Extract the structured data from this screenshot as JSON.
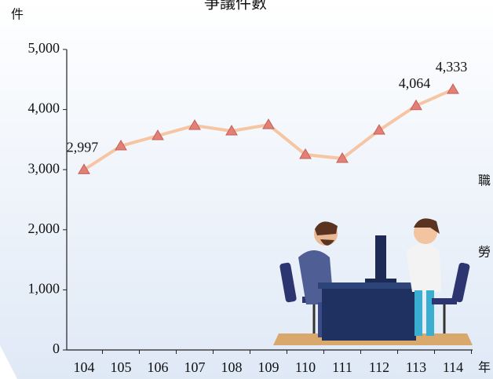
{
  "chart_data": {
    "type": "line",
    "title": "爭議件數",
    "y_label": "件",
    "x_label": "年",
    "side_texts": [
      "職",
      "勞"
    ],
    "categories": [
      "104",
      "105",
      "106",
      "107",
      "108",
      "109",
      "110",
      "111",
      "112",
      "113",
      "114"
    ],
    "series": [
      {
        "name": "爭議件數",
        "color": "#f6c5a3",
        "marker_color": "#e47f76",
        "values": [
          2997,
          3394,
          3564,
          3734,
          3642,
          3747,
          3250,
          3185,
          3655,
          4064,
          4333
        ],
        "value_labels": [
          "2,997",
          null,
          null,
          null,
          null,
          null,
          null,
          null,
          null,
          "4,064",
          "4,333"
        ]
      }
    ],
    "ylim": [
      0,
      5000
    ],
    "yticks": [
      0,
      {
        "value": 1000,
        "label": "1,000"
      },
      {
        "value": 2000,
        "label": "2,000"
      },
      {
        "value": 3000,
        "label": "3,000"
      },
      {
        "value": 4000,
        "label": "4,000"
      },
      {
        "value": 5000,
        "label": "5,000"
      }
    ]
  }
}
